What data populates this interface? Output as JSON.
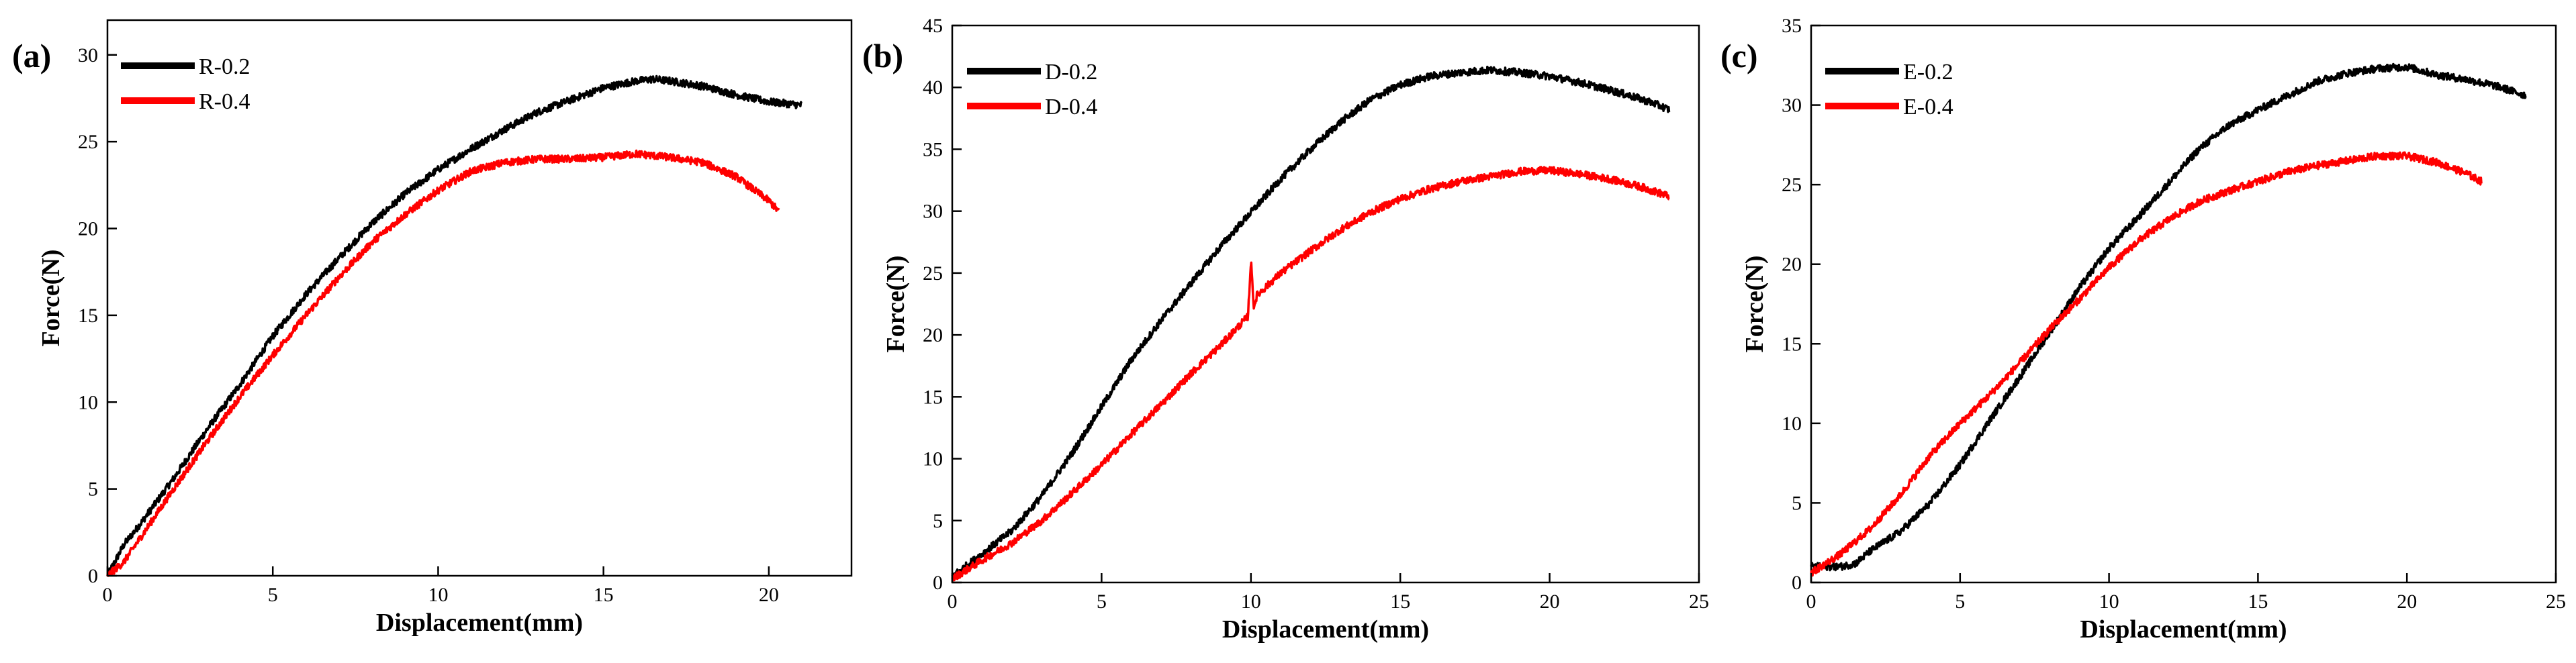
{
  "chart_data": [
    {
      "type": "line",
      "panel_label": "(a)",
      "xlabel": "Displacement(mm)",
      "ylabel": "Force(N)",
      "xlim": [
        0,
        22.5
      ],
      "ylim": [
        0,
        32
      ],
      "xticks": [
        0,
        5,
        10,
        15,
        20
      ],
      "yticks": [
        0,
        5,
        10,
        15,
        20,
        25,
        30
      ],
      "x_tick_labels": [
        "0",
        "5",
        "10",
        "15",
        "20"
      ],
      "y_tick_labels": [
        "0",
        "5",
        "10",
        "15",
        "20",
        "25",
        "30"
      ],
      "legend_position": "top-left",
      "series": [
        {
          "name": "R-0.2",
          "color": "#000000",
          "x": [
            0,
            0.5,
            1,
            2,
            3,
            4,
            5,
            6,
            7,
            8,
            9,
            10,
            11,
            12,
            13,
            14,
            15,
            16,
            16.5,
            17,
            18,
            19,
            20,
            21
          ],
          "y": [
            0,
            1.8,
            3,
            5.6,
            8.4,
            11,
            13.8,
            16.2,
            18.3,
            20.3,
            22,
            23.4,
            24.6,
            25.7,
            26.7,
            27.4,
            28.1,
            28.5,
            28.6,
            28.5,
            28.2,
            27.7,
            27.3,
            27.1
          ]
        },
        {
          "name": "R-0.4",
          "color": "#ff0000",
          "x": [
            0,
            0.5,
            1,
            2,
            3,
            4,
            5,
            6,
            7,
            8,
            9,
            10,
            11,
            12,
            13,
            14,
            15,
            16,
            17,
            18,
            19,
            19.5,
            20,
            20.3
          ],
          "y": [
            0,
            0.8,
            2.2,
            5,
            7.7,
            10.3,
            12.7,
            15,
            17.2,
            19.2,
            20.8,
            22.2,
            23.3,
            23.8,
            24,
            24,
            24.1,
            24.3,
            24.1,
            23.8,
            23,
            22.3,
            21.6,
            21
          ]
        }
      ]
    },
    {
      "type": "line",
      "panel_label": "(b)",
      "xlabel": "Displacement(mm)",
      "ylabel": "Force(N)",
      "xlim": [
        0,
        25
      ],
      "ylim": [
        0,
        45
      ],
      "xticks": [
        0,
        5,
        10,
        15,
        20,
        25
      ],
      "yticks": [
        0,
        5,
        10,
        15,
        20,
        25,
        30,
        35,
        40,
        45
      ],
      "x_tick_labels": [
        "0",
        "5",
        "10",
        "15",
        "20",
        "25"
      ],
      "y_tick_labels": [
        "0",
        "5",
        "10",
        "15",
        "20",
        "25",
        "30",
        "35",
        "40",
        "45"
      ],
      "legend_position": "top-left",
      "series": [
        {
          "name": "D-0.2",
          "color": "#000000",
          "x": [
            0,
            1,
            2,
            3,
            4,
            5,
            6,
            7,
            8,
            9,
            10,
            11,
            12,
            13,
            14,
            15,
            16,
            17,
            18,
            19,
            20,
            21,
            22,
            23,
            23.5,
            24
          ],
          "y": [
            0.5,
            2.3,
            4.2,
            7,
            10.4,
            14.2,
            18,
            21.2,
            24.2,
            27.2,
            29.9,
            32.6,
            35,
            37.2,
            39,
            40.2,
            40.9,
            41.2,
            41.4,
            41.2,
            40.9,
            40.4,
            39.8,
            39.1,
            38.7,
            38.2
          ]
        },
        {
          "name": "D-0.4",
          "color": "#ff0000",
          "x": [
            0,
            1,
            2,
            3,
            4,
            5,
            6,
            7,
            8,
            9,
            9.9,
            10,
            10.1,
            10.2,
            11,
            12,
            13,
            14,
            15,
            16,
            17,
            18,
            19,
            20,
            21,
            22,
            23,
            24
          ],
          "y": [
            0.3,
            1.8,
            3.2,
            5,
            7.2,
            9.5,
            12,
            14.4,
            16.9,
            19.2,
            21.5,
            26,
            22.2,
            23.2,
            25,
            26.8,
            28.5,
            29.9,
            31,
            31.8,
            32.4,
            32.8,
            33.2,
            33.3,
            33,
            32.6,
            32,
            31.2
          ]
        }
      ]
    },
    {
      "type": "line",
      "panel_label": "(c)",
      "xlabel": "Displacement(mm)",
      "ylabel": "Force(N)",
      "xlim": [
        0,
        25
      ],
      "ylim": [
        0,
        35
      ],
      "xticks": [
        0,
        5,
        10,
        15,
        20,
        25
      ],
      "yticks": [
        0,
        5,
        10,
        15,
        20,
        25,
        30,
        35
      ],
      "x_tick_labels": [
        "0",
        "5",
        "10",
        "15",
        "20",
        "25"
      ],
      "y_tick_labels": [
        "0",
        "5",
        "10",
        "15",
        "20",
        "25",
        "30",
        "35"
      ],
      "legend_position": "top-left",
      "series": [
        {
          "name": "E-0.2",
          "color": "#000000",
          "x": [
            0,
            0.5,
            1,
            1.5,
            2,
            3,
            4,
            5,
            6,
            7,
            8,
            9,
            10,
            11,
            12,
            13,
            14,
            15,
            16,
            17,
            18,
            19,
            20,
            21,
            22,
            23,
            24
          ],
          "y": [
            1,
            1,
            1,
            1.2,
            2,
            3.2,
            5,
            7.4,
            10.2,
            12.9,
            15.7,
            18.5,
            21,
            23,
            25.1,
            27.2,
            28.7,
            29.7,
            30.6,
            31.5,
            32,
            32.3,
            32.4,
            31.9,
            31.6,
            31.2,
            30.6
          ]
        },
        {
          "name": "E-0.4",
          "color": "#ff0000",
          "x": [
            0,
            1,
            2,
            3,
            4,
            5,
            6,
            7,
            8,
            9,
            10,
            11,
            12,
            13,
            14,
            15,
            16,
            17,
            18,
            19,
            20,
            21,
            22,
            22.5
          ],
          "y": [
            0.6,
            1.8,
            3.4,
            5.5,
            8,
            10,
            11.8,
            13.8,
            15.9,
            17.8,
            19.8,
            21.5,
            22.8,
            23.9,
            24.6,
            25.2,
            25.8,
            26.2,
            26.5,
            26.8,
            26.8,
            26.4,
            25.7,
            25.2
          ]
        }
      ]
    }
  ]
}
